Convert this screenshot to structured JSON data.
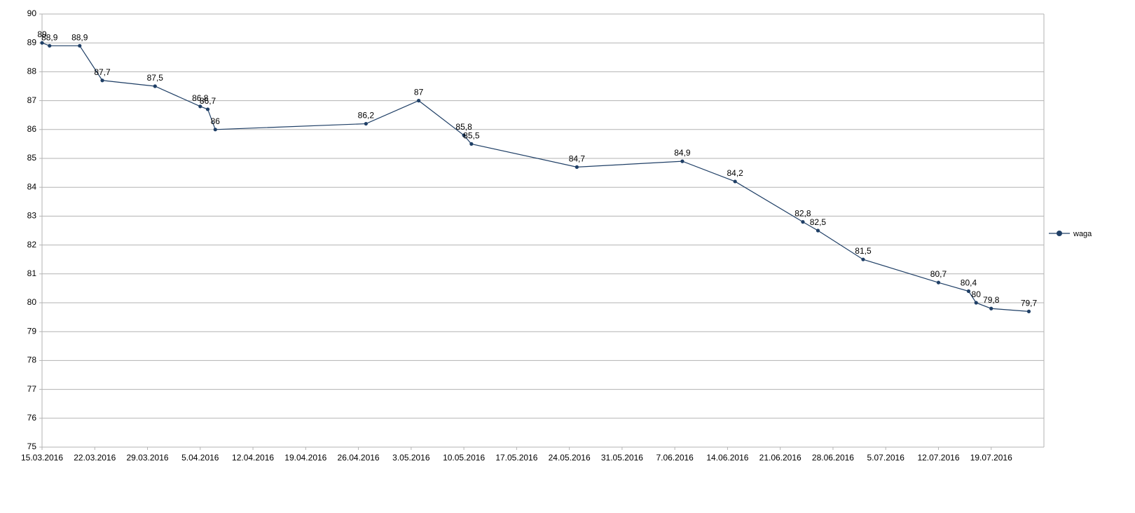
{
  "chart_data": {
    "type": "line",
    "title": "",
    "xlabel": "",
    "ylabel": "",
    "ylim": [
      75,
      90
    ],
    "xlim": [
      "15.03.2016",
      "26.07.2016"
    ],
    "grid": true,
    "legend_position": "right",
    "colors": {
      "series": "#1f3f66",
      "grid": "#b3b3b3",
      "axis": "#b3b3b3"
    },
    "y_ticks": [
      "75",
      "76",
      "77",
      "78",
      "79",
      "80",
      "81",
      "82",
      "83",
      "84",
      "85",
      "86",
      "87",
      "88",
      "89",
      "90"
    ],
    "x_ticks": [
      "15.03.2016",
      "22.03.2016",
      "29.03.2016",
      "5.04.2016",
      "12.04.2016",
      "19.04.2016",
      "26.04.2016",
      "3.05.2016",
      "10.05.2016",
      "17.05.2016",
      "24.05.2016",
      "31.05.2016",
      "7.06.2016",
      "14.06.2016",
      "21.06.2016",
      "28.06.2016",
      "5.07.2016",
      "12.07.2016",
      "19.07.2016"
    ],
    "series": [
      {
        "name": "waga",
        "points": [
          {
            "x": "15.03.2016",
            "y": 89,
            "label": "89"
          },
          {
            "x": "16.03.2016",
            "y": 88.9,
            "label": "88,9"
          },
          {
            "x": "20.03.2016",
            "y": 88.9,
            "label": "88,9"
          },
          {
            "x": "23.03.2016",
            "y": 87.7,
            "label": "87,7"
          },
          {
            "x": "30.03.2016",
            "y": 87.5,
            "label": "87,5"
          },
          {
            "x": "5.04.2016",
            "y": 86.8,
            "label": "86,8"
          },
          {
            "x": "6.04.2016",
            "y": 86.7,
            "label": "86,7"
          },
          {
            "x": "7.04.2016",
            "y": 86,
            "label": "86"
          },
          {
            "x": "27.04.2016",
            "y": 86.2,
            "label": "86,2"
          },
          {
            "x": "4.05.2016",
            "y": 87,
            "label": "87"
          },
          {
            "x": "10.05.2016",
            "y": 85.8,
            "label": "85,8"
          },
          {
            "x": "11.05.2016",
            "y": 85.5,
            "label": "85,5"
          },
          {
            "x": "25.05.2016",
            "y": 84.7,
            "label": "84,7"
          },
          {
            "x": "8.06.2016",
            "y": 84.9,
            "label": "84,9"
          },
          {
            "x": "15.06.2016",
            "y": 84.2,
            "label": "84,2"
          },
          {
            "x": "24.06.2016",
            "y": 82.8,
            "label": "82,8"
          },
          {
            "x": "26.06.2016",
            "y": 82.5,
            "label": "82,5"
          },
          {
            "x": "2.07.2016",
            "y": 81.5,
            "label": "81,5"
          },
          {
            "x": "12.07.2016",
            "y": 80.7,
            "label": "80,7"
          },
          {
            "x": "16.07.2016",
            "y": 80.4,
            "label": "80,4"
          },
          {
            "x": "17.07.2016",
            "y": 80,
            "label": "80"
          },
          {
            "x": "19.07.2016",
            "y": 79.8,
            "label": "79,8"
          },
          {
            "x": "24.07.2016",
            "y": 79.7,
            "label": "79,7"
          }
        ]
      }
    ]
  }
}
